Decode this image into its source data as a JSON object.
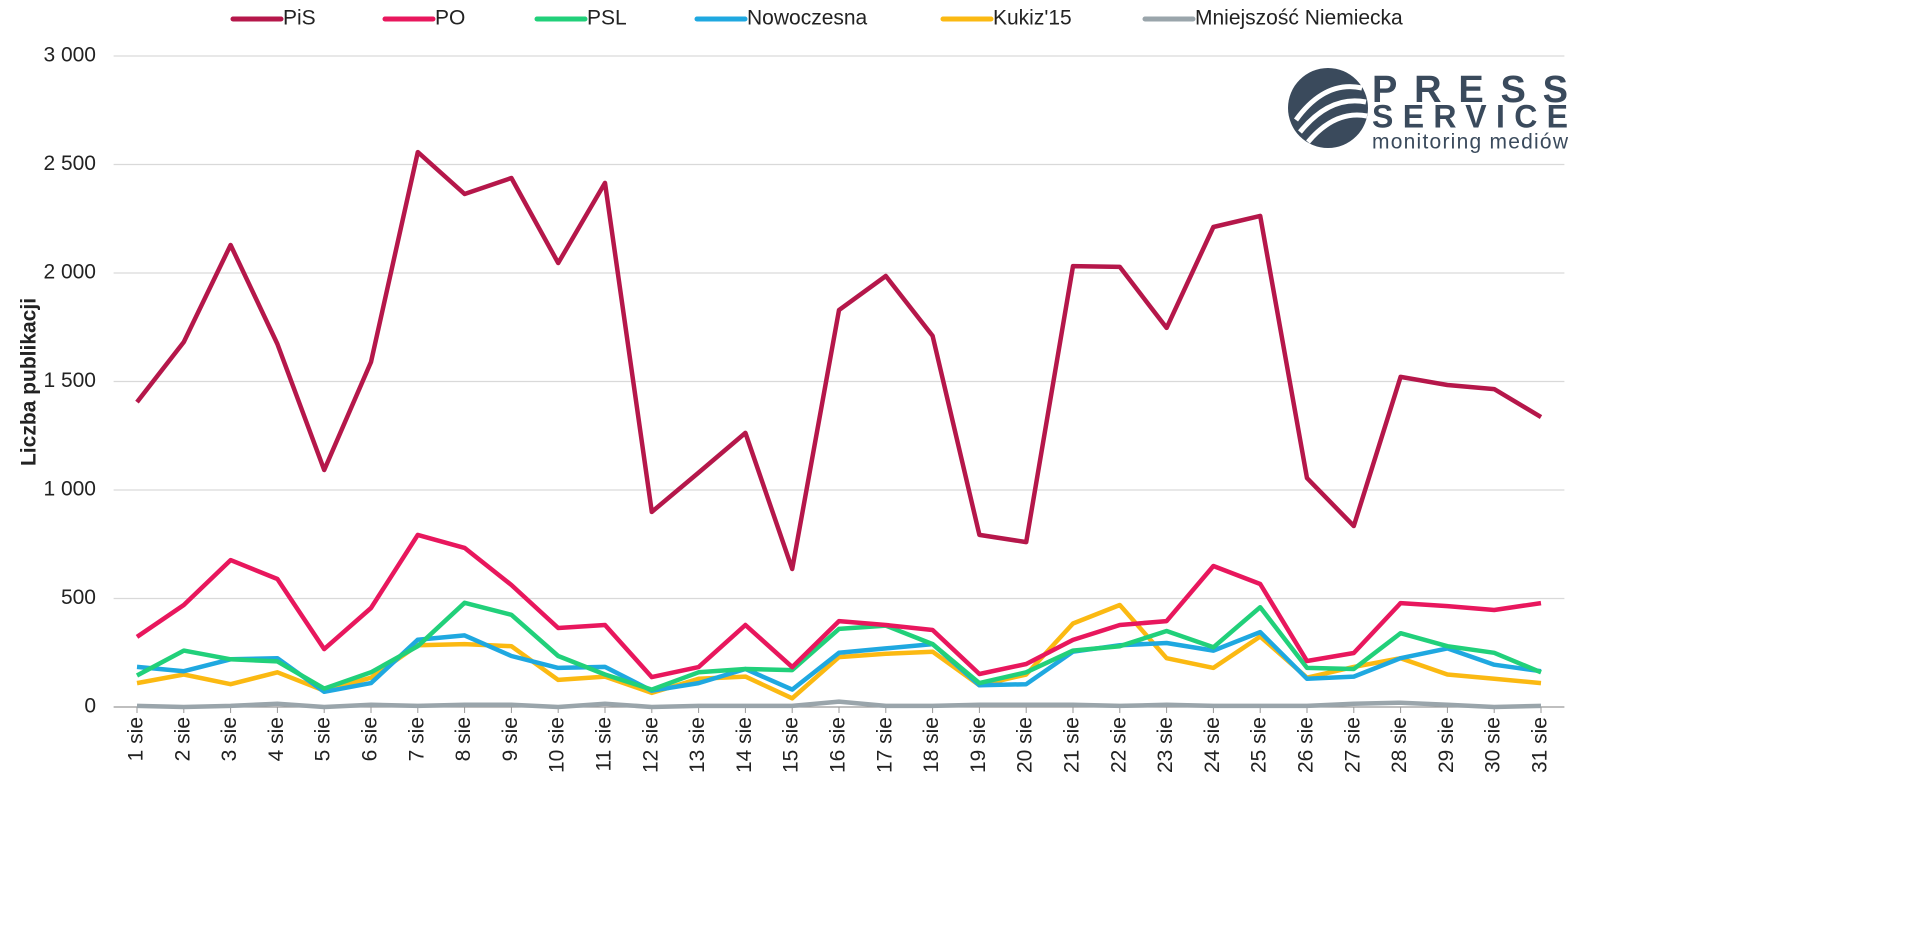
{
  "chart_data": {
    "type": "line",
    "y_axis_label": "Liczba publikacji",
    "categories": [
      "1 sie",
      "2 sie",
      "3 sie",
      "4 sie",
      "5 sie",
      "6 sie",
      "7 sie",
      "8 sie",
      "9 sie",
      "10 sie",
      "11 sie",
      "12 sie",
      "13 sie",
      "14 sie",
      "15 sie",
      "16 sie",
      "17 sie",
      "18 sie",
      "19 sie",
      "20 sie",
      "21 sie",
      "22 sie",
      "23 sie",
      "24 sie",
      "25 sie",
      "26 sie",
      "27 sie",
      "28 sie",
      "29 sie",
      "30 sie",
      "31 sie"
    ],
    "series": [
      {
        "name": "PiS",
        "color": "#b5174a",
        "values": [
          1405,
          1682,
          2129,
          1673,
          1092,
          1590,
          2557,
          2364,
          2438,
          2046,
          2415,
          899,
          1080,
          1263,
          636,
          1829,
          1986,
          1710,
          793,
          760,
          2032,
          2028,
          1747,
          2212,
          2263,
          1055,
          834,
          1521,
          1484,
          1465,
          1336
        ]
      },
      {
        "name": "PO",
        "color": "#e8175d",
        "values": [
          323,
          470,
          677,
          590,
          267,
          456,
          793,
          733,
          562,
          364,
          378,
          138,
          184,
          378,
          184,
          396,
          378,
          355,
          152,
          198,
          309,
          378,
          396,
          650,
          567,
          212,
          249,
          479,
          465,
          447,
          479
        ]
      },
      {
        "name": "PSL",
        "color": "#21d07a",
        "values": [
          145,
          260,
          220,
          210,
          85,
          160,
          280,
          480,
          425,
          235,
          150,
          80,
          160,
          175,
          170,
          360,
          375,
          290,
          110,
          160,
          260,
          280,
          350,
          275,
          460,
          180,
          175,
          340,
          280,
          250,
          160
        ]
      },
      {
        "name": "Nowoczesna",
        "color": "#1fa8e0",
        "values": [
          185,
          165,
          220,
          225,
          70,
          110,
          310,
          330,
          235,
          180,
          185,
          75,
          110,
          175,
          80,
          250,
          270,
          290,
          100,
          105,
          255,
          285,
          295,
          260,
          345,
          130,
          140,
          225,
          270,
          195,
          165
        ]
      },
      {
        "name": "Kukiz'15",
        "color": "#fbb912",
        "values": [
          110,
          150,
          105,
          160,
          75,
          135,
          285,
          290,
          280,
          125,
          140,
          65,
          130,
          140,
          40,
          230,
          245,
          255,
          100,
          150,
          385,
          470,
          225,
          180,
          325,
          135,
          185,
          225,
          150,
          130,
          110
        ]
      },
      {
        "name": "Mniejszość Niemiecka",
        "color": "#9aa5ab",
        "values": [
          5,
          0,
          5,
          15,
          0,
          10,
          5,
          10,
          10,
          0,
          15,
          0,
          5,
          5,
          5,
          25,
          5,
          5,
          10,
          10,
          10,
          5,
          10,
          5,
          5,
          5,
          15,
          20,
          10,
          0,
          5
        ]
      }
    ],
    "ylim": [
      0,
      3000
    ],
    "yticks": [
      0,
      500,
      {
        "value": 1000,
        "label": "1 000"
      },
      {
        "value": 1500,
        "label": "1 500"
      },
      {
        "value": 2000,
        "label": "2 000"
      },
      {
        "value": 2500,
        "label": "2 500"
      },
      {
        "value": 3000,
        "label": "3 000"
      }
    ],
    "grid": true,
    "legend": "top"
  },
  "logo": {
    "line1": "PRESS",
    "line2": "SERVICE",
    "tagline": "monitoring mediów"
  }
}
